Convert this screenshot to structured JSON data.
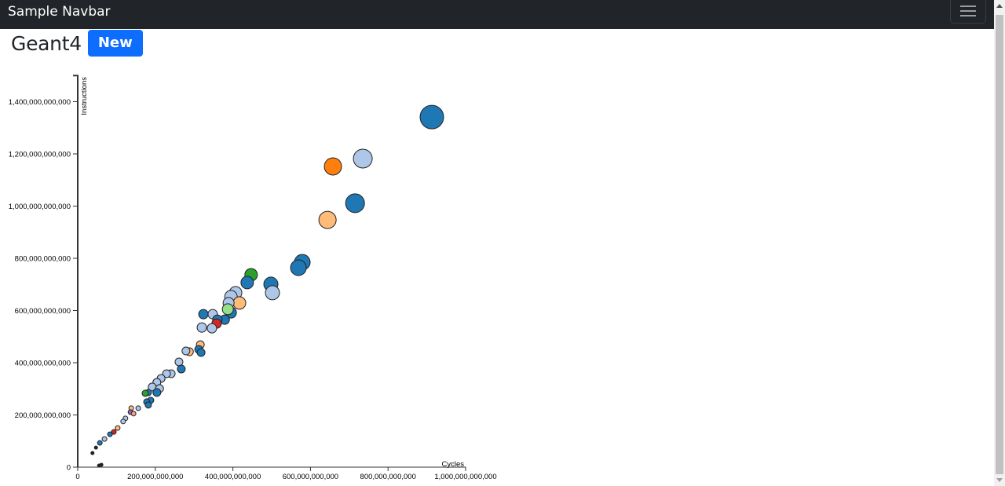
{
  "navbar": {
    "brand": "Sample Navbar",
    "toggler_icon": "hamburger-menu-icon"
  },
  "page": {
    "title": "Geant4",
    "badge": "New",
    "badge_color": "#0d6efd"
  },
  "chart_data": {
    "type": "scatter",
    "title": "",
    "xlabel": "Cycles",
    "ylabel": "Instructions",
    "xlim": [
      0,
      1000000000000
    ],
    "ylim": [
      0,
      1500000000000
    ],
    "x_ticks": [
      "0",
      "200,000,000,000",
      "400,000,000,000",
      "600,000,000,000",
      "800,000,000,000",
      "1,000,000,000,000"
    ],
    "y_ticks": [
      "0",
      "200,000,000,000",
      "400,000,000,000",
      "600,000,000,000",
      "800,000,000,000",
      "1,000,000,000,000",
      "1,200,000,000,000",
      "1,400,000,000,000"
    ],
    "grid": false,
    "legend": null,
    "palette": {
      "blue": "#1f77b4",
      "lightblue": "#aec7e8",
      "orange": "#ff7f0e",
      "lightorange": "#ffbb78",
      "green": "#2ca02c",
      "lightgreen": "#98df8a",
      "red": "#d62728",
      "pink": "#ff9896",
      "purple": "#9467bd",
      "dark": "#222222"
    },
    "points": [
      {
        "x": 913000000000.0,
        "y": 1341000000000.0,
        "r": 15,
        "c": "blue"
      },
      {
        "x": 735000000000.0,
        "y": 1182000000000.0,
        "r": 12,
        "c": "lightblue"
      },
      {
        "x": 658000000000.0,
        "y": 1152000000000.0,
        "r": 11,
        "c": "orange"
      },
      {
        "x": 715000000000.0,
        "y": 1011000000000.0,
        "r": 12,
        "c": "blue"
      },
      {
        "x": 644000000000.0,
        "y": 947000000000.0,
        "r": 11,
        "c": "lightorange"
      },
      {
        "x": 579000000000.0,
        "y": 785000000000.0,
        "r": 10,
        "c": "blue"
      },
      {
        "x": 569000000000.0,
        "y": 764000000000.0,
        "r": 10,
        "c": "blue"
      },
      {
        "x": 498000000000.0,
        "y": 701000000000.0,
        "r": 9,
        "c": "blue"
      },
      {
        "x": 502000000000.0,
        "y": 668000000000.0,
        "r": 9,
        "c": "lightblue"
      },
      {
        "x": 447000000000.0,
        "y": 737000000000.0,
        "r": 8,
        "c": "green"
      },
      {
        "x": 437000000000.0,
        "y": 707000000000.0,
        "r": 8,
        "c": "blue"
      },
      {
        "x": 407000000000.0,
        "y": 668000000000.0,
        "r": 8,
        "c": "lightblue"
      },
      {
        "x": 395000000000.0,
        "y": 653000000000.0,
        "r": 8,
        "c": "lightblue"
      },
      {
        "x": 417000000000.0,
        "y": 629000000000.0,
        "r": 8,
        "c": "lightorange"
      },
      {
        "x": 389000000000.0,
        "y": 629000000000.0,
        "r": 7,
        "c": "lightblue"
      },
      {
        "x": 395000000000.0,
        "y": 592000000000.0,
        "r": 7,
        "c": "blue"
      },
      {
        "x": 387000000000.0,
        "y": 605000000000.0,
        "r": 7,
        "c": "lightgreen"
      },
      {
        "x": 348000000000.0,
        "y": 586000000000.0,
        "r": 6,
        "c": "lightblue"
      },
      {
        "x": 324000000000.0,
        "y": 586000000000.0,
        "r": 6,
        "c": "blue"
      },
      {
        "x": 379000000000.0,
        "y": 565000000000.0,
        "r": 6,
        "c": "blue"
      },
      {
        "x": 360000000000.0,
        "y": 565000000000.0,
        "r": 6,
        "c": "blue"
      },
      {
        "x": 358000000000.0,
        "y": 550000000000.0,
        "r": 6,
        "c": "red"
      },
      {
        "x": 346000000000.0,
        "y": 532000000000.0,
        "r": 6,
        "c": "lightblue"
      },
      {
        "x": 320000000000.0,
        "y": 535000000000.0,
        "r": 6,
        "c": "lightblue"
      },
      {
        "x": 316000000000.0,
        "y": 469000000000.0,
        "r": 5,
        "c": "lightorange"
      },
      {
        "x": 312000000000.0,
        "y": 451000000000.0,
        "r": 5,
        "c": "blue"
      },
      {
        "x": 318000000000.0,
        "y": 439000000000.0,
        "r": 5,
        "c": "blue"
      },
      {
        "x": 288000000000.0,
        "y": 442000000000.0,
        "r": 5,
        "c": "lightorange"
      },
      {
        "x": 279000000000.0,
        "y": 445000000000.0,
        "r": 5,
        "c": "lightblue"
      },
      {
        "x": 261000000000.0,
        "y": 403000000000.0,
        "r": 5,
        "c": "lightblue"
      },
      {
        "x": 267000000000.0,
        "y": 376000000000.0,
        "r": 5,
        "c": "blue"
      },
      {
        "x": 241000000000.0,
        "y": 358000000000.0,
        "r": 5,
        "c": "lightblue"
      },
      {
        "x": 229000000000.0,
        "y": 358000000000.0,
        "r": 5,
        "c": "lightblue"
      },
      {
        "x": 215000000000.0,
        "y": 340000000000.0,
        "r": 5,
        "c": "lightblue"
      },
      {
        "x": 204000000000.0,
        "y": 325000000000.0,
        "r": 5,
        "c": "lightblue"
      },
      {
        "x": 192000000000.0,
        "y": 307000000000.0,
        "r": 5,
        "c": "lightblue"
      },
      {
        "x": 211000000000.0,
        "y": 301000000000.0,
        "r": 5,
        "c": "lightblue"
      },
      {
        "x": 204000000000.0,
        "y": 286000000000.0,
        "r": 5,
        "c": "blue"
      },
      {
        "x": 182000000000.0,
        "y": 286000000000.0,
        "r": 4,
        "c": "blue"
      },
      {
        "x": 174000000000.0,
        "y": 283000000000.0,
        "r": 4,
        "c": "green"
      },
      {
        "x": 188000000000.0,
        "y": 256000000000.0,
        "r": 4,
        "c": "blue"
      },
      {
        "x": 178000000000.0,
        "y": 250000000000.0,
        "r": 4,
        "c": "blue"
      },
      {
        "x": 182000000000.0,
        "y": 238000000000.0,
        "r": 4,
        "c": "blue"
      },
      {
        "x": 156000000000.0,
        "y": 226000000000.0,
        "r": 3,
        "c": "lightblue"
      },
      {
        "x": 138000000000.0,
        "y": 226000000000.0,
        "r": 3,
        "c": "lightorange"
      },
      {
        "x": 136000000000.0,
        "y": 211000000000.0,
        "r": 3,
        "c": "purple"
      },
      {
        "x": 144000000000.0,
        "y": 205000000000.0,
        "r": 3,
        "c": "pink"
      },
      {
        "x": 123000000000.0,
        "y": 187000000000.0,
        "r": 3,
        "c": "lightblue"
      },
      {
        "x": 117000000000.0,
        "y": 175000000000.0,
        "r": 3,
        "c": "lightblue"
      },
      {
        "x": 103000000000.0,
        "y": 150000000000.0,
        "r": 3,
        "c": "lightorange"
      },
      {
        "x": 93000000000.0,
        "y": 135000000000.0,
        "r": 3,
        "c": "red"
      },
      {
        "x": 83000000000.0,
        "y": 126000000000.0,
        "r": 3,
        "c": "blue"
      },
      {
        "x": 69000000000.0,
        "y": 108000000000.0,
        "r": 3,
        "c": "lightblue"
      },
      {
        "x": 57000000000.0,
        "y": 93000000000.0,
        "r": 3,
        "c": "blue"
      },
      {
        "x": 47000000000.0,
        "y": 75000000000.0,
        "r": 2,
        "c": "dark"
      },
      {
        "x": 38000000000.0,
        "y": 54000000000.0,
        "r": 2,
        "c": "dark"
      },
      {
        "x": 55000000000.0,
        "y": 6000000000.0,
        "r": 2,
        "c": "dark"
      },
      {
        "x": 61000000000.0,
        "y": 9000000000.0,
        "r": 2,
        "c": "dark"
      }
    ]
  }
}
